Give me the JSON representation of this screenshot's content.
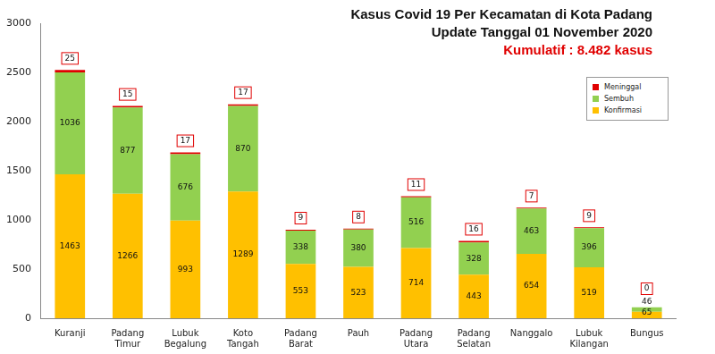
{
  "chart_data": {
    "type": "bar",
    "title": "Kasus Covid 19 Per Kecamatan di Kota Padang",
    "subtitle": "Update Tanggal 01 November 2020",
    "annotations": [
      "Kumulatif : 8.482 kasus"
    ],
    "categories": [
      "Kuranji",
      "Padang Timur",
      "Lubuk Begalung",
      "Koto Tangah",
      "Padang Barat",
      "Pauh",
      "Padang Utara",
      "Padang Selatan",
      "Nanggalo",
      "Lubuk Kilangan",
      "Bungus"
    ],
    "series": [
      {
        "name": "Konfirmasi",
        "color": "#FFC000",
        "values": [
          1463,
          1266,
          993,
          1289,
          553,
          523,
          714,
          443,
          654,
          519,
          65
        ]
      },
      {
        "name": "Sembuh",
        "color": "#92D050",
        "values": [
          1036,
          877,
          676,
          870,
          338,
          380,
          516,
          328,
          463,
          396,
          46
        ]
      },
      {
        "name": "Meninggal",
        "color": "#E00000",
        "values": [
          25,
          15,
          17,
          17,
          9,
          8,
          11,
          16,
          7,
          9,
          0
        ]
      }
    ],
    "stacked": true,
    "data_labels": true,
    "ylim": [
      0,
      3000
    ],
    "yticks": [
      0,
      500,
      1000,
      1500,
      2000,
      2500,
      3000
    ],
    "grid": false,
    "legend": "upper right"
  }
}
